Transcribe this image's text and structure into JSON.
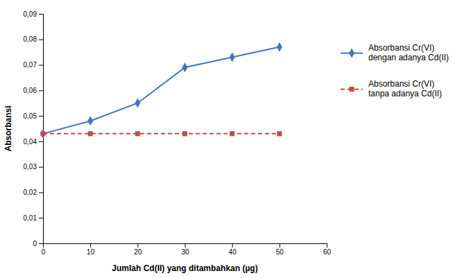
{
  "chart_data": {
    "type": "line",
    "xlabel": "Jumlah Cd(II) yang ditambahkan (µg)",
    "ylabel": "Absorbansi",
    "x": [
      0,
      10,
      20,
      30,
      40,
      50
    ],
    "series": [
      {
        "name": "Absorbansi Cr(VI)\ndengan adanya Cd(II)",
        "color": "#4472C4",
        "marker": "diamond",
        "line_style": "solid",
        "values": [
          0.043,
          0.048,
          0.055,
          0.069,
          0.073,
          0.077
        ]
      },
      {
        "name": "Absorbansi Cr(VI)\ntanpa adanya Cd(II)",
        "color": "#BE4B48",
        "marker": "square",
        "line_style": "dashed",
        "values": [
          0.043,
          0.043,
          0.043,
          0.043,
          0.043,
          0.043
        ]
      }
    ],
    "xlim": [
      0,
      60
    ],
    "ylim": [
      0,
      0.09
    ],
    "xticks": [
      0,
      10,
      20,
      30,
      40,
      50,
      60
    ],
    "yticks": [
      0,
      {
        "value": 0.01,
        "label": "0,01"
      },
      {
        "value": 0.02,
        "label": "0,02"
      },
      {
        "value": 0.03,
        "label": "0,03"
      },
      {
        "value": 0.04,
        "label": "0,04"
      },
      {
        "value": 0.05,
        "label": "0,05"
      },
      {
        "value": 0.06,
        "label": "0,06"
      },
      {
        "value": 0.07,
        "label": "0,07"
      },
      {
        "value": 0.08,
        "label": "0,08"
      },
      {
        "value": 0.09,
        "label": "0,09"
      }
    ],
    "grid": false,
    "legend": "right"
  }
}
